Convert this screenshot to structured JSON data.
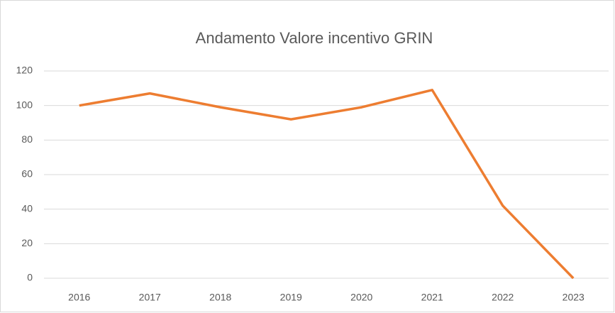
{
  "chart_data": {
    "type": "line",
    "title": "Andamento Valore incentivo GRIN",
    "categories": [
      "2016",
      "2017",
      "2018",
      "2019",
      "2020",
      "2021",
      "2022",
      "2023"
    ],
    "values": [
      100,
      107,
      99,
      92,
      99,
      109,
      42,
      0
    ],
    "color": "#ed7d31",
    "ylim": [
      0,
      120
    ],
    "yticks": [
      0,
      20,
      40,
      60,
      80,
      100,
      120
    ],
    "grid": true
  }
}
